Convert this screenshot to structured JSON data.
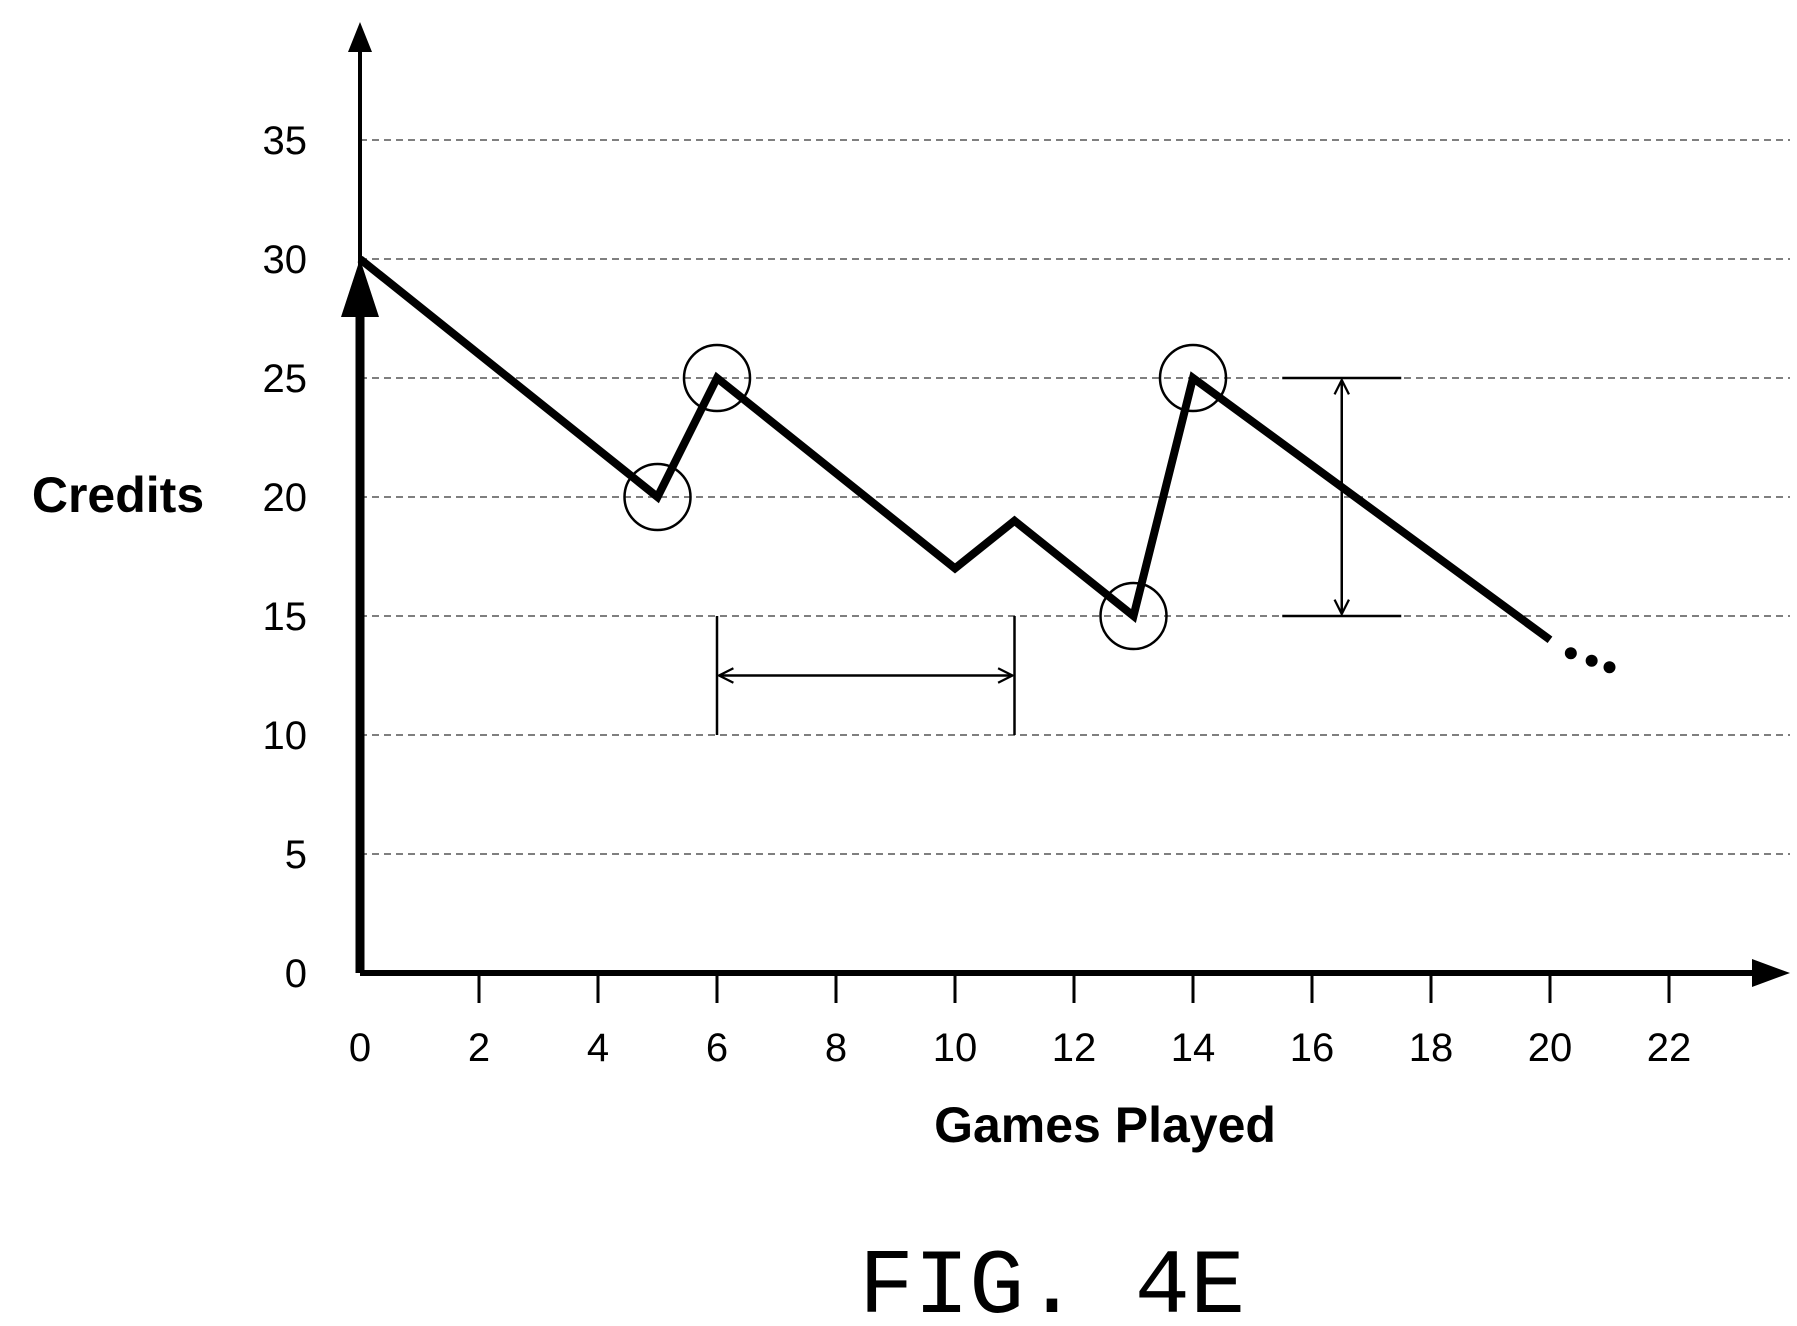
{
  "chart_data": {
    "type": "line",
    "xlabel": "Games Played",
    "ylabel": "Credits",
    "x_ticks": [
      0,
      2,
      4,
      6,
      8,
      10,
      12,
      14,
      16,
      18,
      20,
      22
    ],
    "y_ticks": [
      0,
      5,
      10,
      15,
      20,
      25,
      30,
      35
    ],
    "xlim": [
      0,
      23.5
    ],
    "ylim": [
      0,
      40
    ],
    "grid": "horizontal-dashed",
    "series": [
      {
        "x": [
          0,
          5,
          6,
          10,
          11,
          13,
          14,
          20
        ],
        "y": [
          30,
          20,
          25,
          17,
          19,
          15,
          25,
          14
        ],
        "continues": true
      }
    ],
    "highlighted_points": [
      {
        "x": 5,
        "y": 20
      },
      {
        "x": 6,
        "y": 25
      },
      {
        "x": 13,
        "y": 15
      },
      {
        "x": 14,
        "y": 25
      }
    ],
    "annotations": [
      {
        "kind": "horizontal-span",
        "x_start": 6,
        "x_end": 11,
        "y": 12.5,
        "marker_y_range": [
          10,
          15
        ]
      },
      {
        "kind": "vertical-span",
        "x": 16.5,
        "y_start": 15,
        "y_end": 25,
        "marker_x_range": [
          15.5,
          17.5
        ]
      }
    ]
  },
  "figure_label": "FIG. 4E"
}
